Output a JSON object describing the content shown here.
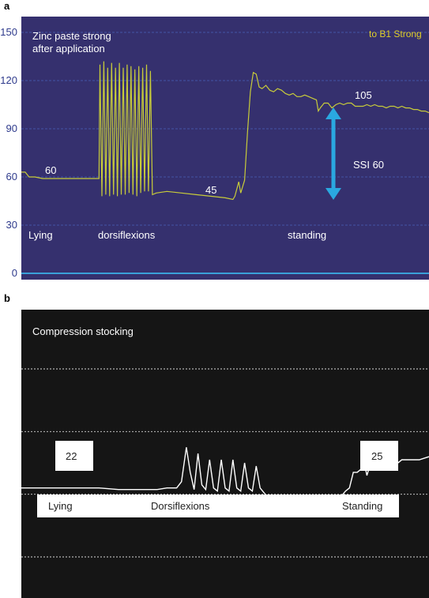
{
  "panel_a": {
    "letter": "a",
    "colors": {
      "background": "#35306e",
      "trace": "#c8cc3a",
      "gridline": "#4a5fb8",
      "zero_line": "#3aa0d8",
      "arrow": "#2aa8e0",
      "legend_text": "#e0cf2a",
      "tick_text": "#2e3a8c"
    },
    "legend": "to B1 Strong",
    "annotation_title": [
      "Zinc paste strong",
      "after application"
    ],
    "value_labels": [
      "60",
      "45",
      "105"
    ],
    "ssi_label": "SSI 60",
    "phase_labels": [
      "Lying",
      "dorsiflexions",
      "standing"
    ]
  },
  "panel_b": {
    "letter": "b",
    "colors": {
      "background": "#151515",
      "trace": "#ffffff",
      "gridline": "#d8d8d8",
      "box": "#ffffff",
      "box_text": "#222222"
    },
    "title": "Compression stocking",
    "value_labels": [
      "22",
      "25"
    ],
    "phase_labels": [
      "Lying",
      "Dorsiflexions",
      "Standing"
    ]
  },
  "chart_data": [
    {
      "type": "line",
      "panel": "a",
      "title": "",
      "xlabel": "",
      "ylabel": "",
      "yticks": [
        0,
        30,
        60,
        90,
        120,
        150
      ],
      "ylim": [
        -2,
        160
      ],
      "grid": true,
      "legend_placement": "top-right",
      "series": [
        {
          "name": "to B1 Strong",
          "points": [
            [
              0,
              63
            ],
            [
              4,
              63
            ],
            [
              8,
              60
            ],
            [
              14,
              60
            ],
            [
              22,
              59
            ],
            [
              30,
              59
            ],
            [
              38,
              59
            ],
            [
              46,
              59
            ],
            [
              54,
              59
            ],
            [
              60,
              59
            ],
            [
              70,
              59
            ],
            [
              80,
              59
            ],
            [
              81,
              130
            ],
            [
              83,
              48
            ],
            [
              85,
              132
            ],
            [
              87,
              49
            ],
            [
              89,
              128
            ],
            [
              91,
              48
            ],
            [
              93,
              131
            ],
            [
              95,
              49
            ],
            [
              97,
              128
            ],
            [
              99,
              48
            ],
            [
              101,
              131
            ],
            [
              103,
              49
            ],
            [
              105,
              128
            ],
            [
              107,
              49
            ],
            [
              109,
              130
            ],
            [
              111,
              50
            ],
            [
              113,
              129
            ],
            [
              115,
              49
            ],
            [
              117,
              127
            ],
            [
              119,
              48
            ],
            [
              121,
              129
            ],
            [
              123,
              50
            ],
            [
              125,
              128
            ],
            [
              127,
              51
            ],
            [
              129,
              130
            ],
            [
              131,
              51
            ],
            [
              133,
              126
            ],
            [
              135,
              49
            ],
            [
              139,
              50
            ],
            [
              150,
              51
            ],
            [
              165,
              50
            ],
            [
              180,
              49
            ],
            [
              195,
              48
            ],
            [
              210,
              47
            ],
            [
              218,
              46
            ],
            [
              220,
              48
            ],
            [
              224,
              57
            ],
            [
              226,
              50
            ],
            [
              230,
              58
            ],
            [
              233,
              88
            ],
            [
              236,
              113
            ],
            [
              239,
              125
            ],
            [
              242,
              124
            ],
            [
              245,
              116
            ],
            [
              248,
              115
            ],
            [
              252,
              117
            ],
            [
              256,
              114
            ],
            [
              260,
              113
            ],
            [
              264,
              115
            ],
            [
              268,
              114
            ],
            [
              272,
              112
            ],
            [
              276,
              111
            ],
            [
              280,
              112
            ],
            [
              284,
              110
            ],
            [
              288,
              110
            ],
            [
              292,
              111
            ],
            [
              296,
              110
            ],
            [
              300,
              109
            ],
            [
              304,
              108
            ],
            [
              306,
              101
            ],
            [
              308,
              103
            ],
            [
              312,
              106
            ],
            [
              316,
              106
            ],
            [
              320,
              103
            ],
            [
              324,
              105
            ],
            [
              328,
              106
            ],
            [
              332,
              105
            ],
            [
              336,
              106
            ],
            [
              340,
              106
            ],
            [
              344,
              104
            ],
            [
              348,
              104
            ],
            [
              352,
              104
            ],
            [
              356,
              105
            ],
            [
              360,
              104
            ],
            [
              364,
              105
            ],
            [
              368,
              104
            ],
            [
              372,
              104
            ],
            [
              376,
              103
            ],
            [
              380,
              104
            ],
            [
              384,
              104
            ],
            [
              388,
              103
            ],
            [
              392,
              104
            ],
            [
              396,
              103
            ],
            [
              400,
              103
            ],
            [
              404,
              102
            ],
            [
              408,
              102
            ],
            [
              412,
              101
            ],
            [
              416,
              101
            ],
            [
              420,
              100
            ]
          ]
        }
      ]
    },
    {
      "type": "line",
      "panel": "b",
      "title": "Compression stocking",
      "xlabel": "",
      "ylabel": "",
      "grid": true,
      "series": [
        {
          "name": "",
          "points": [
            [
              0,
              22
            ],
            [
              40,
              22
            ],
            [
              60,
              22
            ],
            [
              80,
              22
            ],
            [
              100,
              21.5
            ],
            [
              120,
              21.5
            ],
            [
              140,
              21.5
            ],
            [
              150,
              22
            ],
            [
              160,
              22
            ],
            [
              165,
              24
            ],
            [
              170,
              35
            ],
            [
              174,
              27
            ],
            [
              178,
              21.5
            ],
            [
              182,
              33
            ],
            [
              186,
              23
            ],
            [
              190,
              21.5
            ],
            [
              194,
              31
            ],
            [
              198,
              22
            ],
            [
              202,
              21
            ],
            [
              206,
              31
            ],
            [
              210,
              22
            ],
            [
              214,
              21
            ],
            [
              218,
              31
            ],
            [
              222,
              22
            ],
            [
              226,
              21
            ],
            [
              230,
              30
            ],
            [
              234,
              22
            ],
            [
              238,
              21
            ],
            [
              242,
              29
            ],
            [
              246,
              22
            ],
            [
              250,
              20.5
            ],
            [
              254,
              19
            ],
            [
              260,
              18
            ],
            [
              280,
              18.5
            ],
            [
              300,
              19
            ],
            [
              320,
              19
            ],
            [
              330,
              19.5
            ],
            [
              334,
              21
            ],
            [
              338,
              22
            ],
            [
              342,
              27
            ],
            [
              346,
              27
            ],
            [
              350,
              28
            ],
            [
              354,
              29
            ],
            [
              356,
              26
            ],
            [
              358,
              28
            ],
            [
              362,
              29
            ],
            [
              370,
              29
            ],
            [
              378,
              29.5
            ],
            [
              386,
              29.5
            ],
            [
              392,
              31
            ],
            [
              400,
              31
            ],
            [
              410,
              31
            ],
            [
              420,
              32
            ]
          ]
        }
      ]
    }
  ]
}
